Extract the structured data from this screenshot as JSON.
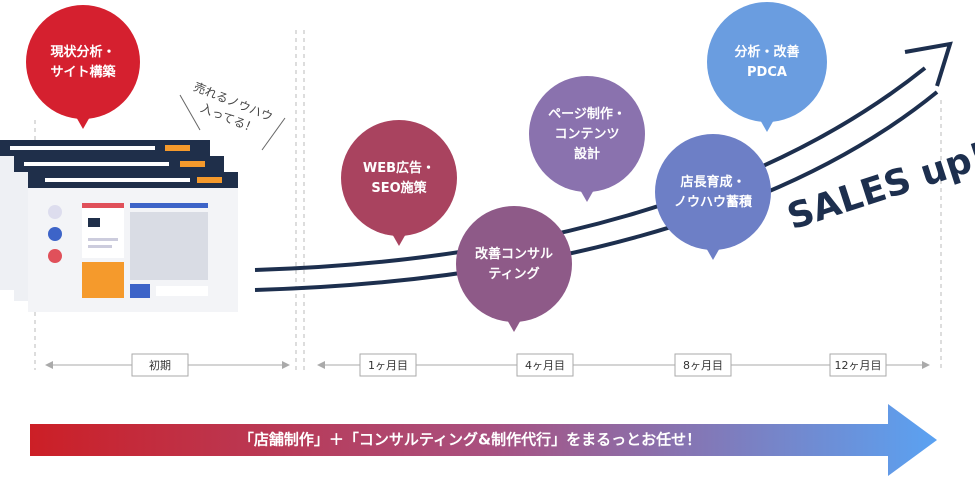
{
  "bubbles": [
    {
      "lines": [
        "現状分析・",
        "サイト構築"
      ]
    },
    {
      "lines": [
        "WEB広告・",
        "SEO施策"
      ]
    },
    {
      "lines": [
        "改善コンサル",
        "ティング"
      ]
    },
    {
      "lines": [
        "ページ制作・",
        "コンテンツ",
        "設計"
      ]
    },
    {
      "lines": [
        "店長育成・",
        "ノウハウ蓄積"
      ]
    },
    {
      "lines": [
        "分析・改善",
        "PDCA"
      ]
    }
  ],
  "annotation": {
    "lines": [
      "売れるノウハウ",
      "入ってる！"
    ]
  },
  "sales_label": "SALES up!",
  "timeline": {
    "initial": "初期",
    "months": [
      "1ヶ月目",
      "4ヶ月目",
      "8ヶ月目",
      "12ヶ月目"
    ]
  },
  "banner": "「店舗制作」＋「コンサルティング&制作代行」をまるっとお任せ！"
}
